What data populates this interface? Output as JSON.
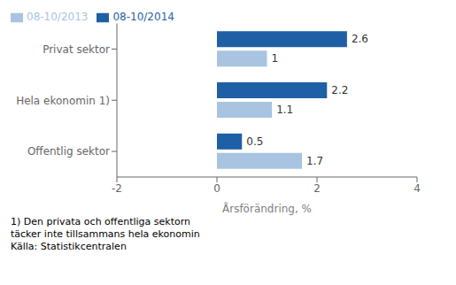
{
  "chart_data": {
    "type": "bar",
    "orientation": "horizontal",
    "categories": [
      "Offentlig sektor",
      "Hela ekonomin 1)",
      "Privat sektor"
    ],
    "series": [
      {
        "name": "08-10/2014",
        "color": "#1F5FA6",
        "values": [
          0.5,
          2.2,
          2.6
        ]
      },
      {
        "name": "08-10/2013",
        "color": "#A8C4E0",
        "values": [
          1.7,
          1.1,
          1.0
        ]
      }
    ],
    "xlabel": "Årsförändring, %",
    "xlim": [
      -2,
      4
    ],
    "xticks": [
      -2,
      0,
      2,
      4
    ],
    "data_labels": true,
    "legend": "upper left",
    "grid": false,
    "annotations": [
      "1) Den privata och offentliga sektorn",
      "täcker inte tillsammans hela ekonomin",
      "Källa: Statistikcentralen"
    ]
  }
}
